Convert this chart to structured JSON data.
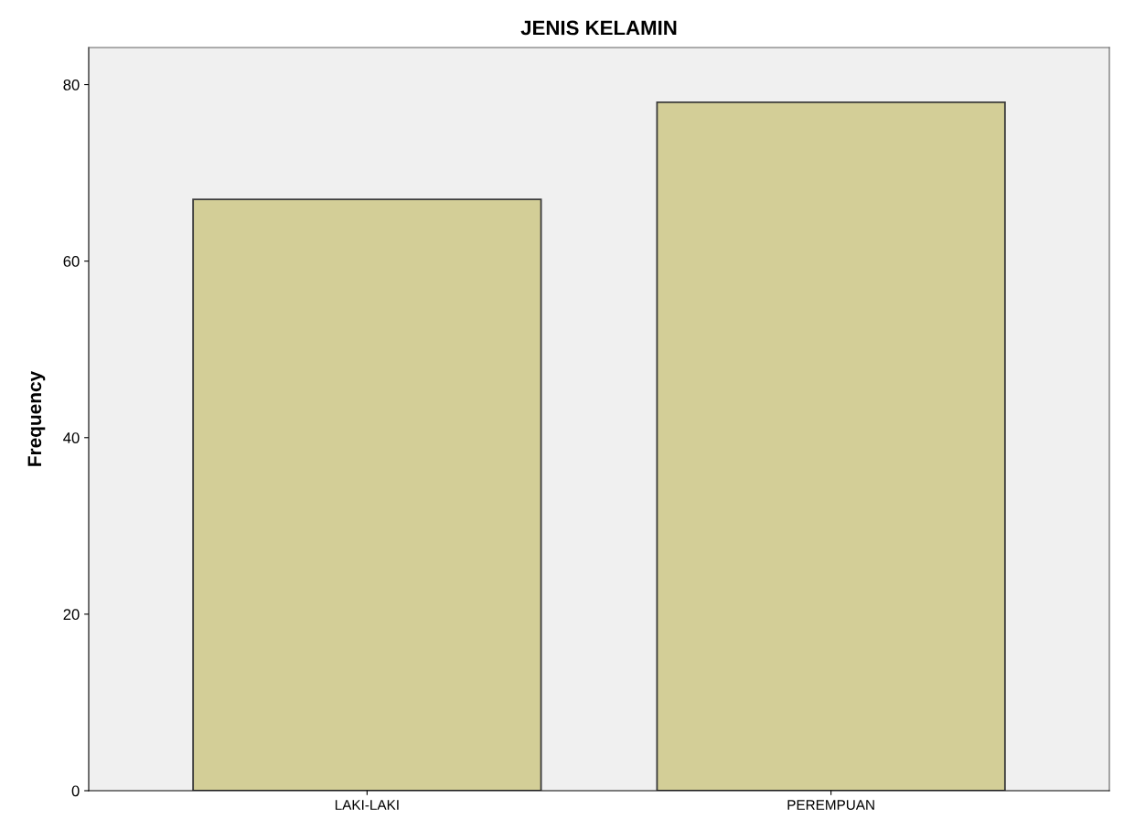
{
  "chart_data": {
    "type": "bar",
    "title": "JENIS KELAMIN",
    "ylabel": "Frequency",
    "categories": [
      "LAKI-LAKI",
      "PEREMPUAN"
    ],
    "values": [
      67,
      78
    ],
    "color": "#d3ce97",
    "ylim": [
      0,
      84.2
    ],
    "yticks": [
      0,
      20,
      40,
      60,
      80
    ],
    "grid": false
  }
}
